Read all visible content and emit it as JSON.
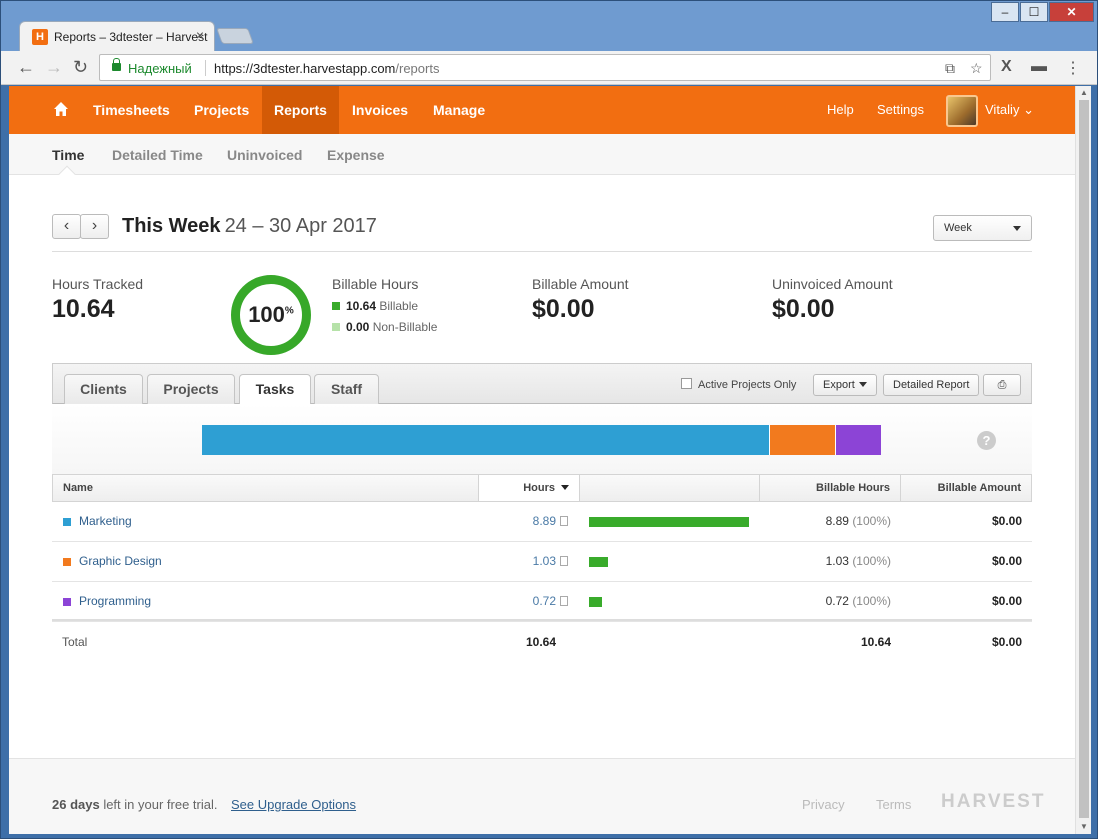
{
  "browser": {
    "tab_title": "Reports – 3dtester – Harvest",
    "secure_label": "Надежный",
    "url_host": "https://3dtester.harvestapp.com",
    "url_path": "/reports"
  },
  "topnav": {
    "items": [
      "Timesheets",
      "Projects",
      "Reports",
      "Invoices",
      "Manage"
    ],
    "active": "Reports",
    "help": "Help",
    "settings": "Settings",
    "user": "Vitaliy"
  },
  "subnav": {
    "items": [
      "Time",
      "Detailed Time",
      "Uninvoiced",
      "Expense"
    ],
    "active": "Time"
  },
  "period": {
    "title": "This Week",
    "range": "24 – 30 Apr 2017",
    "select": "Week"
  },
  "stats": {
    "hours_tracked_label": "Hours Tracked",
    "hours_tracked": "10.64",
    "donut_pct": "100",
    "donut_unit": "%",
    "billable_hours_label": "Billable Hours",
    "billable_value": "10.64",
    "billable_text": "Billable",
    "nonbillable_value": "0.00",
    "nonbillable_text": "Non-Billable",
    "billable_amount_label": "Billable Amount",
    "billable_amount": "$0.00",
    "uninvoiced_label": "Uninvoiced Amount",
    "uninvoiced_amount": "$0.00"
  },
  "report_tabs": {
    "items": [
      "Clients",
      "Projects",
      "Tasks",
      "Staff"
    ],
    "active": "Tasks",
    "active_only": "Active Projects Only",
    "export": "Export",
    "detailed_report": "Detailed Report"
  },
  "table": {
    "headers": {
      "name": "Name",
      "hours": "Hours",
      "billable_hours": "Billable Hours",
      "billable_amount": "Billable Amount"
    },
    "rows": [
      {
        "name": "Marketing",
        "hours": "8.89",
        "billable": "8.89",
        "pct": "(100%)",
        "amount": "$0.00",
        "color": "#2e9fd3",
        "share": 0.8355
      },
      {
        "name": "Graphic Design",
        "hours": "1.03",
        "billable": "1.03",
        "pct": "(100%)",
        "amount": "$0.00",
        "color": "#f27a1e",
        "share": 0.0968
      },
      {
        "name": "Programming",
        "hours": "0.72",
        "billable": "0.72",
        "pct": "(100%)",
        "amount": "$0.00",
        "color": "#8c44d6",
        "share": 0.0677
      }
    ],
    "total": {
      "label": "Total",
      "hours": "10.64",
      "billable": "10.64",
      "amount": "$0.00"
    }
  },
  "footer": {
    "trial_days": "26 days",
    "trial_text": " left in your free trial.",
    "upgrade": "See Upgrade Options",
    "privacy": "Privacy",
    "terms": "Terms",
    "logo": "HARVEST"
  },
  "colors": {
    "brand_orange": "#f26e11",
    "bar_green": "#39ab2b"
  }
}
